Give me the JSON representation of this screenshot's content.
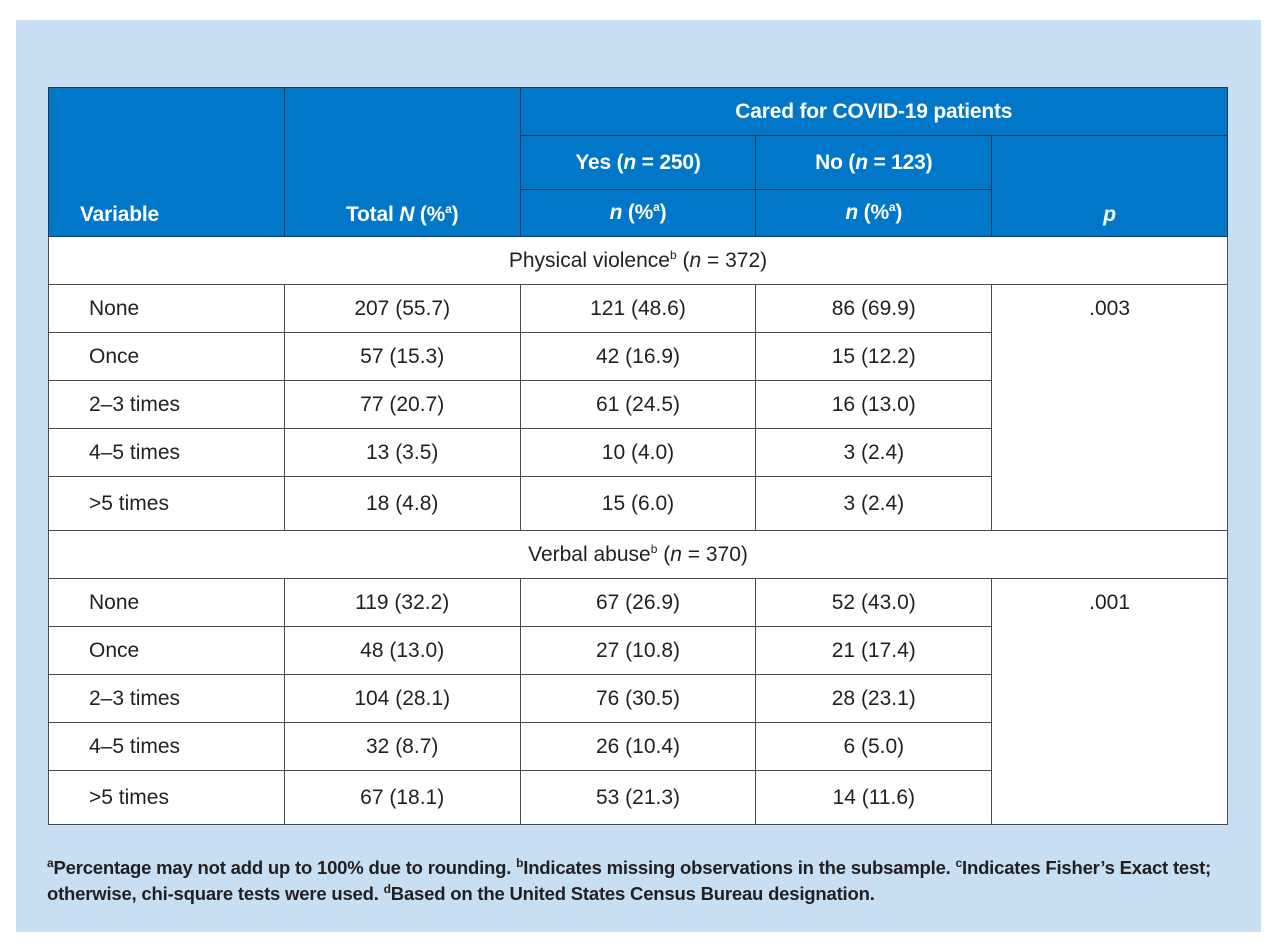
{
  "header": {
    "variable": "Variable",
    "total": "Total",
    "total_n": "N",
    "total_pct": "(%",
    "sup_a": "a",
    "close_paren": ")",
    "group_title": "Cared for COVID-19 patients",
    "yes": "Yes (",
    "yes_n_label": "n",
    "yes_count": " = 250)",
    "no": "No (",
    "no_n_label": "n",
    "no_count": " = 123)",
    "n_italic": "n",
    "pct_open": " (%",
    "p": "p"
  },
  "sections": [
    {
      "title": "Physical violence",
      "title_sup": "b",
      "title_n_open": " (",
      "title_n": "n",
      "title_n_rest": " = 372)",
      "p_value": ".003",
      "rows": [
        {
          "label": "None",
          "total": "207 (55.7)",
          "yes": "121 (48.6)",
          "no": "86 (69.9)"
        },
        {
          "label": "Once",
          "total": "57 (15.3)",
          "yes": "42 (16.9)",
          "no": "15 (12.2)"
        },
        {
          "label": "2–3 times",
          "total": "77 (20.7)",
          "yes": "61 (24.5)",
          "no": "16 (13.0)"
        },
        {
          "label": "4–5 times",
          "total": "13 (3.5)",
          "yes": "10 (4.0)",
          "no": "3 (2.4)"
        },
        {
          "label": ">5 times",
          "total": "18 (4.8)",
          "yes": "15 (6.0)",
          "no": "3 (2.4)"
        }
      ]
    },
    {
      "title": "Verbal abuse",
      "title_sup": "b",
      "title_n_open": " (",
      "title_n": "n",
      "title_n_rest": " = 370)",
      "p_value": ".001",
      "rows": [
        {
          "label": "None",
          "total": "119 (32.2)",
          "yes": "67 (26.9)",
          "no": "52 (43.0)"
        },
        {
          "label": "Once",
          "total": "48 (13.0)",
          "yes": "27 (10.8)",
          "no": "21 (17.4)"
        },
        {
          "label": "2–3 times",
          "total": "104 (28.1)",
          "yes": "76 (30.5)",
          "no": "28 (23.1)"
        },
        {
          "label": "4–5 times",
          "total": "32 (8.7)",
          "yes": "26 (10.4)",
          "no": "6 (5.0)"
        },
        {
          "label": ">5 times",
          "total": "67 (18.1)",
          "yes": "53 (21.3)",
          "no": "14 (11.6)"
        }
      ]
    }
  ],
  "footnote": {
    "sup_a": "a",
    "text_a": "Percentage may not add up to 100% due to rounding. ",
    "sup_b": "b",
    "text_b": "Indicates missing observations in the subsample. ",
    "sup_c": "c",
    "text_c": "Indicates Fisher’s Exact test; otherwise, chi-square tests were used. ",
    "sup_d": "d",
    "text_d": "Based on the United States Census Bureau designation."
  }
}
